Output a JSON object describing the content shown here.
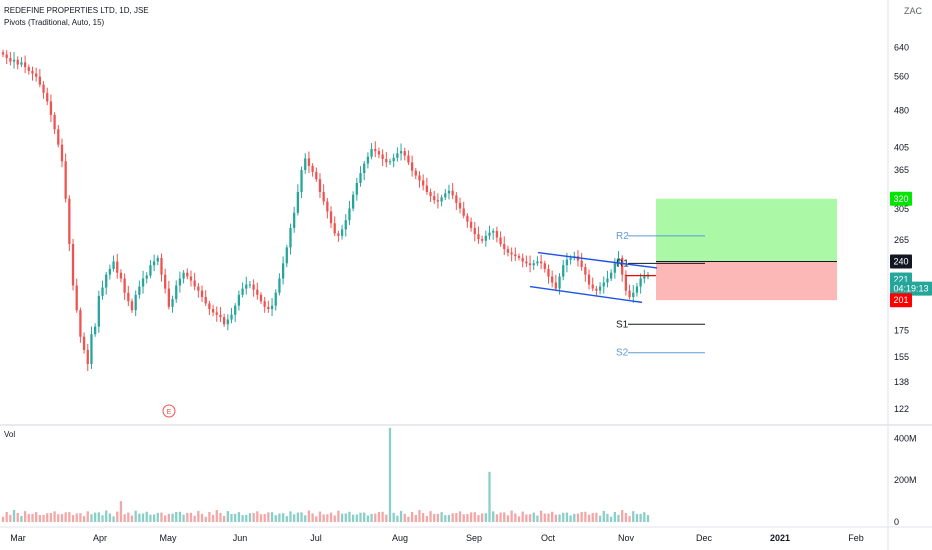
{
  "header": {
    "title": "REDEFINE PROPERTIES LTD, 1D, JSE",
    "indicator": "Pivots (Traditional, Auto, 15)",
    "currency": "ZAC",
    "volume_label": "Vol"
  },
  "colors": {
    "up": "#26a69a",
    "down": "#ef5350",
    "up_vol": "#89cfc8",
    "down_vol": "#f3a6a6",
    "channel": "#1e53e5",
    "pivot_blue": "#5b9bd5",
    "target_zone": "#8ff58a",
    "stop_zone": "#fbaaaa",
    "grid": "#f0f3fa"
  },
  "chart_data": [
    {
      "type": "candlestick",
      "title": "REDEFINE PROPERTIES LTD, 1D, JSE",
      "y_axis": {
        "scale": "log",
        "range": [
          115,
          700
        ],
        "tick_labels": [
          "640",
          "560",
          "480",
          "405",
          "365",
          "305",
          "265",
          "175",
          "155",
          "138",
          "122"
        ]
      },
      "x_axis": {
        "tick_labels": [
          "Mar",
          "Apr",
          "May",
          "Jun",
          "Jul",
          "Aug",
          "Sep",
          "Oct",
          "Nov",
          "Dec",
          "2021",
          "Feb"
        ]
      },
      "price_badges": [
        {
          "text": "320",
          "value": 320,
          "color": "#00e600"
        },
        {
          "text": "240",
          "value": 240,
          "color": "#131722"
        },
        {
          "text": "221",
          "value": 221,
          "color": "#26a69a"
        },
        {
          "text": "04:19:13",
          "value": 212,
          "color": "#26a69a"
        },
        {
          "text": "201",
          "value": 201,
          "color": "#ff0000"
        }
      ],
      "pivots": [
        {
          "label": "R2",
          "value": 270,
          "color": "#5b9bd5"
        },
        {
          "label": "R1",
          "value": 238,
          "color": "#131722"
        },
        {
          "label": "S1",
          "value": 180,
          "color": "#131722"
        },
        {
          "label": "S2",
          "value": 158,
          "color": "#5b9bd5"
        }
      ],
      "position": {
        "entry": 240,
        "target": 320,
        "stop": 201,
        "entry_marker": 225
      },
      "channel": {
        "upper": [
          250,
          233
        ],
        "lower": [
          214,
          199
        ]
      },
      "event_marker": "E",
      "series_closes": [
        620,
        610,
        600,
        605,
        592,
        598,
        585,
        575,
        568,
        560,
        540,
        520,
        500,
        470,
        440,
        410,
        380,
        320,
        260,
        215,
        192,
        170,
        160,
        150,
        172,
        178,
        205,
        213,
        226,
        232,
        240,
        228,
        222,
        208,
        200,
        192,
        206,
        214,
        222,
        225,
        236,
        240,
        244,
        226,
        212,
        195,
        202,
        215,
        222,
        228,
        224,
        220,
        214,
        210,
        204,
        198,
        193,
        190,
        188,
        186,
        180,
        184,
        188,
        196,
        206,
        212,
        216,
        216,
        211,
        206,
        200,
        195,
        193,
        196,
        208,
        222,
        238,
        256,
        280,
        300,
        330,
        365,
        385,
        372,
        362,
        350,
        330,
        316,
        302,
        286,
        273,
        270,
        278,
        290,
        306,
        326,
        344,
        360,
        376,
        388,
        402,
        398,
        392,
        384,
        378,
        380,
        386,
        394,
        398,
        390,
        378,
        364,
        356,
        348,
        340,
        330,
        324,
        318,
        316,
        322,
        328,
        332,
        325,
        314,
        306,
        296,
        288,
        280,
        272,
        266,
        264,
        270,
        274,
        276,
        268,
        260,
        254,
        250,
        248,
        246,
        244,
        240,
        238,
        236,
        238,
        240,
        238,
        232,
        224,
        218,
        212,
        224,
        236,
        242,
        244,
        246,
        241,
        234,
        226,
        216,
        212,
        210,
        214,
        218,
        222,
        228,
        238,
        244,
        226,
        210,
        204,
        208,
        214,
        222,
        224,
        226
      ],
      "volume": {
        "axis_labels": [
          "400M",
          "200M",
          "0"
        ],
        "range": [
          0,
          440
        ],
        "spikes": [
          {
            "index": 32,
            "value": 100
          },
          {
            "index": 105,
            "value": 450
          },
          {
            "index": 132,
            "value": 240
          }
        ],
        "baseline": 25
      }
    }
  ]
}
